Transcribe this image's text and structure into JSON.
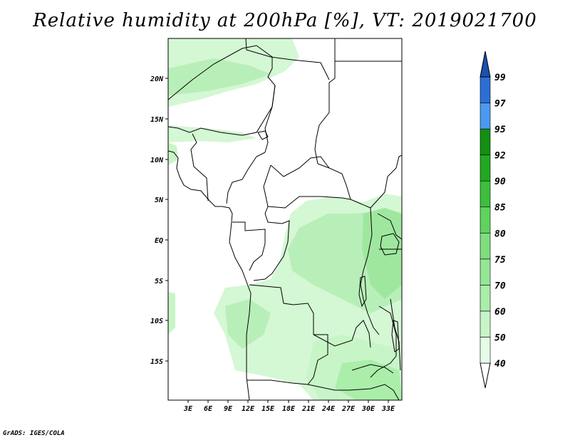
{
  "title": "Relative humidity at 200hPa [%], VT: 2019021700",
  "credit": "GrADS: IGES/COLA",
  "map": {
    "lon_range": [
      0,
      35
    ],
    "lat_range": [
      -20,
      25
    ],
    "lat_labels": [
      "20N",
      "15N",
      "10N",
      "5N",
      "EQ",
      "5S",
      "10S",
      "15S"
    ],
    "lon_labels": [
      "3E",
      "6E",
      "9E",
      "12E",
      "15E",
      "18E",
      "21E",
      "24E",
      "27E",
      "30E",
      "33E"
    ],
    "field": "relative humidity"
  },
  "colorbar": {
    "levels": [
      "40",
      "50",
      "60",
      "70",
      "75",
      "80",
      "85",
      "90",
      "92",
      "95",
      "97",
      "99"
    ],
    "colors": [
      "#ffffff",
      "#e6fce6",
      "#c8f5c8",
      "#aaeeaa",
      "#96e696",
      "#7ede7e",
      "#5fd35f",
      "#3cbf3c",
      "#22a822",
      "#129012",
      "#4a9aef",
      "#2c6fd4",
      "#1a50b0"
    ]
  }
}
